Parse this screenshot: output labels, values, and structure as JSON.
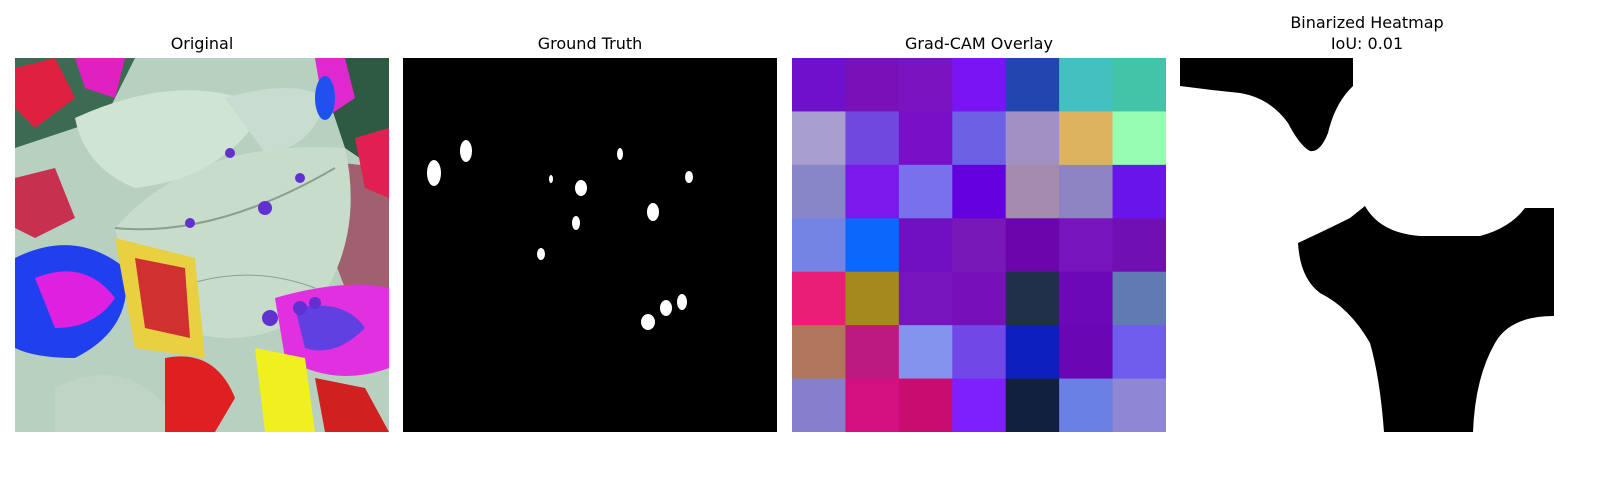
{
  "panels": [
    {
      "title": "Original"
    },
    {
      "title": "Ground Truth"
    },
    {
      "title": "Grad-CAM Overlay"
    },
    {
      "title": "Binarized Heatmap",
      "subtitle": "IoU: 0.01"
    }
  ],
  "gradcam_grid": [
    [
      "#6f10cc",
      "#7a10b8",
      "#7a14c0",
      "#7a14f5",
      "#2245b0",
      "#45c0c0",
      "#42c4a8"
    ],
    [
      "#a99ed0",
      "#7048e0",
      "#7810c8",
      "#6c60e4",
      "#a090c4",
      "#dcb460",
      "#96fcb2"
    ],
    [
      "#8886c6",
      "#7c18ec",
      "#7870ec",
      "#6400e0",
      "#a48aac",
      "#8e84c4",
      "#6a14ec"
    ],
    [
      "#7484e4",
      "#0a68fc",
      "#7010c0",
      "#7818b8",
      "#6a06ac",
      "#7814bc",
      "#7010b4"
    ],
    [
      "#ea1e76",
      "#a48a1c",
      "#7814bc",
      "#7610b8",
      "#20304a",
      "#6c08b8",
      "#627ab2"
    ],
    [
      "#b0765c",
      "#bc1a80",
      "#8494ec",
      "#7048e8",
      "#0c20c0",
      "#6a06b4",
      "#6e5cec"
    ],
    [
      "#8680cc",
      "#d41080",
      "#c80c70",
      "#7e20fc",
      "#122040",
      "#6a80e4",
      "#8e88d4"
    ]
  ],
  "colors": {
    "background": "#ffffff",
    "mask_fg": "#ffffff",
    "mask_bg": "#000000"
  }
}
